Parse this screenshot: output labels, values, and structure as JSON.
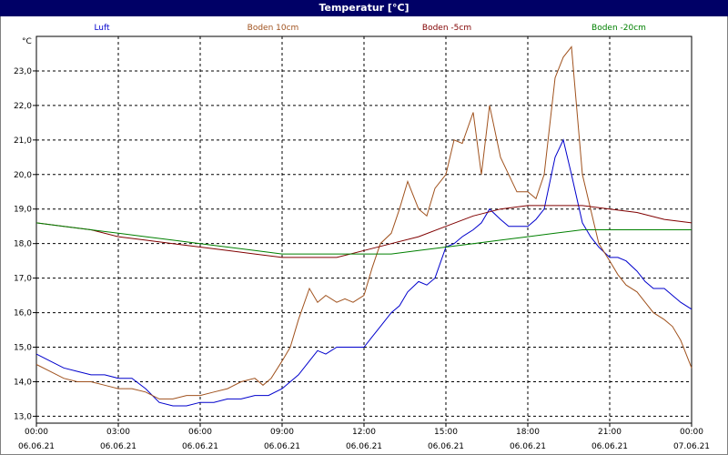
{
  "window": {
    "title": "Temperatur [°C]"
  },
  "chart_data": {
    "type": "line",
    "title": "Temperatur [°C]",
    "ylabel": "°C",
    "xlabel": "",
    "ylim": [
      12.8,
      24.0
    ],
    "xlim": [
      0,
      24
    ],
    "grid": true,
    "legend": "top",
    "yticks": [
      "13,0",
      "14,0",
      "15,0",
      "16,0",
      "17,0",
      "18,0",
      "19,0",
      "20,0",
      "21,0",
      "22,0",
      "23,0"
    ],
    "yticks_values": [
      13,
      14,
      15,
      16,
      17,
      18,
      19,
      20,
      21,
      22,
      23
    ],
    "xticks": [
      {
        "time": "00:00",
        "date": "06.06.21"
      },
      {
        "time": "03:00",
        "date": "06.06.21"
      },
      {
        "time": "06:00",
        "date": "06.06.21"
      },
      {
        "time": "09:00",
        "date": "06.06.21"
      },
      {
        "time": "12:00",
        "date": "06.06.21"
      },
      {
        "time": "15:00",
        "date": "06.06.21"
      },
      {
        "time": "18:00",
        "date": "06.06.21"
      },
      {
        "time": "21:00",
        "date": "06.06.21"
      },
      {
        "time": "00:00",
        "date": "07.06.21"
      }
    ],
    "series": [
      {
        "name": "Luft",
        "color": "#0000cc",
        "points": [
          [
            0.0,
            14.8
          ],
          [
            0.5,
            14.6
          ],
          [
            1.0,
            14.4
          ],
          [
            1.5,
            14.3
          ],
          [
            2.0,
            14.2
          ],
          [
            2.5,
            14.2
          ],
          [
            3.0,
            14.1
          ],
          [
            3.5,
            14.1
          ],
          [
            4.0,
            13.8
          ],
          [
            4.5,
            13.4
          ],
          [
            5.0,
            13.3
          ],
          [
            5.5,
            13.3
          ],
          [
            6.0,
            13.4
          ],
          [
            6.5,
            13.4
          ],
          [
            7.0,
            13.5
          ],
          [
            7.5,
            13.5
          ],
          [
            8.0,
            13.6
          ],
          [
            8.5,
            13.6
          ],
          [
            9.0,
            13.8
          ],
          [
            9.3,
            14.0
          ],
          [
            9.6,
            14.2
          ],
          [
            10.0,
            14.6
          ],
          [
            10.3,
            14.9
          ],
          [
            10.6,
            14.8
          ],
          [
            11.0,
            15.0
          ],
          [
            11.5,
            15.0
          ],
          [
            12.0,
            15.0
          ],
          [
            12.3,
            15.3
          ],
          [
            12.6,
            15.6
          ],
          [
            13.0,
            16.0
          ],
          [
            13.3,
            16.2
          ],
          [
            13.6,
            16.6
          ],
          [
            14.0,
            16.9
          ],
          [
            14.3,
            16.8
          ],
          [
            14.6,
            17.0
          ],
          [
            15.0,
            17.9
          ],
          [
            15.3,
            18.0
          ],
          [
            15.6,
            18.2
          ],
          [
            16.0,
            18.4
          ],
          [
            16.3,
            18.6
          ],
          [
            16.6,
            19.0
          ],
          [
            17.0,
            18.7
          ],
          [
            17.3,
            18.5
          ],
          [
            17.6,
            18.5
          ],
          [
            18.0,
            18.5
          ],
          [
            18.3,
            18.7
          ],
          [
            18.6,
            19.0
          ],
          [
            19.0,
            20.5
          ],
          [
            19.3,
            21.0
          ],
          [
            19.6,
            20.0
          ],
          [
            20.0,
            18.6
          ],
          [
            20.3,
            18.2
          ],
          [
            20.6,
            17.9
          ],
          [
            21.0,
            17.6
          ],
          [
            21.3,
            17.6
          ],
          [
            21.6,
            17.5
          ],
          [
            22.0,
            17.2
          ],
          [
            22.3,
            16.9
          ],
          [
            22.6,
            16.7
          ],
          [
            23.0,
            16.7
          ],
          [
            23.3,
            16.5
          ],
          [
            23.6,
            16.3
          ],
          [
            24.0,
            16.1
          ]
        ]
      },
      {
        "name": "Boden 10cm",
        "color": "#a0521e",
        "points": [
          [
            0.0,
            14.5
          ],
          [
            0.5,
            14.3
          ],
          [
            1.0,
            14.1
          ],
          [
            1.5,
            14.0
          ],
          [
            2.0,
            14.0
          ],
          [
            2.5,
            13.9
          ],
          [
            3.0,
            13.8
          ],
          [
            3.5,
            13.8
          ],
          [
            4.0,
            13.7
          ],
          [
            4.5,
            13.5
          ],
          [
            5.0,
            13.5
          ],
          [
            5.5,
            13.6
          ],
          [
            6.0,
            13.6
          ],
          [
            6.5,
            13.7
          ],
          [
            7.0,
            13.8
          ],
          [
            7.5,
            14.0
          ],
          [
            8.0,
            14.1
          ],
          [
            8.3,
            13.9
          ],
          [
            8.6,
            14.1
          ],
          [
            9.0,
            14.6
          ],
          [
            9.3,
            15.0
          ],
          [
            9.6,
            15.8
          ],
          [
            10.0,
            16.7
          ],
          [
            10.3,
            16.3
          ],
          [
            10.6,
            16.5
          ],
          [
            11.0,
            16.3
          ],
          [
            11.3,
            16.4
          ],
          [
            11.6,
            16.3
          ],
          [
            12.0,
            16.5
          ],
          [
            12.3,
            17.3
          ],
          [
            12.6,
            18.0
          ],
          [
            13.0,
            18.3
          ],
          [
            13.3,
            19.0
          ],
          [
            13.6,
            19.8
          ],
          [
            14.0,
            19.0
          ],
          [
            14.3,
            18.8
          ],
          [
            14.6,
            19.6
          ],
          [
            15.0,
            20.0
          ],
          [
            15.3,
            21.0
          ],
          [
            15.6,
            20.9
          ],
          [
            16.0,
            21.8
          ],
          [
            16.3,
            20.0
          ],
          [
            16.6,
            22.0
          ],
          [
            17.0,
            20.5
          ],
          [
            17.3,
            20.0
          ],
          [
            17.6,
            19.5
          ],
          [
            18.0,
            19.5
          ],
          [
            18.3,
            19.3
          ],
          [
            18.6,
            20.0
          ],
          [
            19.0,
            22.8
          ],
          [
            19.3,
            23.4
          ],
          [
            19.6,
            23.7
          ],
          [
            20.0,
            20.0
          ],
          [
            20.3,
            19.0
          ],
          [
            20.6,
            18.0
          ],
          [
            21.0,
            17.5
          ],
          [
            21.3,
            17.1
          ],
          [
            21.6,
            16.8
          ],
          [
            22.0,
            16.6
          ],
          [
            22.3,
            16.3
          ],
          [
            22.6,
            16.0
          ],
          [
            23.0,
            15.8
          ],
          [
            23.3,
            15.6
          ],
          [
            23.6,
            15.2
          ],
          [
            24.0,
            14.4
          ]
        ]
      },
      {
        "name": "Boden -5cm",
        "color": "#800000",
        "points": [
          [
            0.0,
            18.6
          ],
          [
            1.0,
            18.5
          ],
          [
            2.0,
            18.4
          ],
          [
            3.0,
            18.2
          ],
          [
            4.0,
            18.1
          ],
          [
            5.0,
            18.0
          ],
          [
            6.0,
            17.9
          ],
          [
            7.0,
            17.8
          ],
          [
            8.0,
            17.7
          ],
          [
            9.0,
            17.6
          ],
          [
            10.0,
            17.6
          ],
          [
            11.0,
            17.6
          ],
          [
            12.0,
            17.8
          ],
          [
            13.0,
            18.0
          ],
          [
            14.0,
            18.2
          ],
          [
            15.0,
            18.5
          ],
          [
            16.0,
            18.8
          ],
          [
            17.0,
            19.0
          ],
          [
            18.0,
            19.1
          ],
          [
            19.0,
            19.1
          ],
          [
            20.0,
            19.1
          ],
          [
            21.0,
            19.0
          ],
          [
            22.0,
            18.9
          ],
          [
            23.0,
            18.7
          ],
          [
            24.0,
            18.6
          ]
        ]
      },
      {
        "name": "Boden -20cm",
        "color": "#008000",
        "points": [
          [
            0.0,
            18.6
          ],
          [
            1.0,
            18.5
          ],
          [
            2.0,
            18.4
          ],
          [
            3.0,
            18.3
          ],
          [
            4.0,
            18.2
          ],
          [
            5.0,
            18.1
          ],
          [
            6.0,
            18.0
          ],
          [
            7.0,
            17.9
          ],
          [
            8.0,
            17.8
          ],
          [
            9.0,
            17.7
          ],
          [
            10.0,
            17.7
          ],
          [
            11.0,
            17.7
          ],
          [
            12.0,
            17.7
          ],
          [
            13.0,
            17.7
          ],
          [
            14.0,
            17.8
          ],
          [
            15.0,
            17.9
          ],
          [
            16.0,
            18.0
          ],
          [
            17.0,
            18.1
          ],
          [
            18.0,
            18.2
          ],
          [
            19.0,
            18.3
          ],
          [
            20.0,
            18.4
          ],
          [
            21.0,
            18.4
          ],
          [
            22.0,
            18.4
          ],
          [
            23.0,
            18.4
          ],
          [
            24.0,
            18.4
          ]
        ]
      }
    ]
  }
}
